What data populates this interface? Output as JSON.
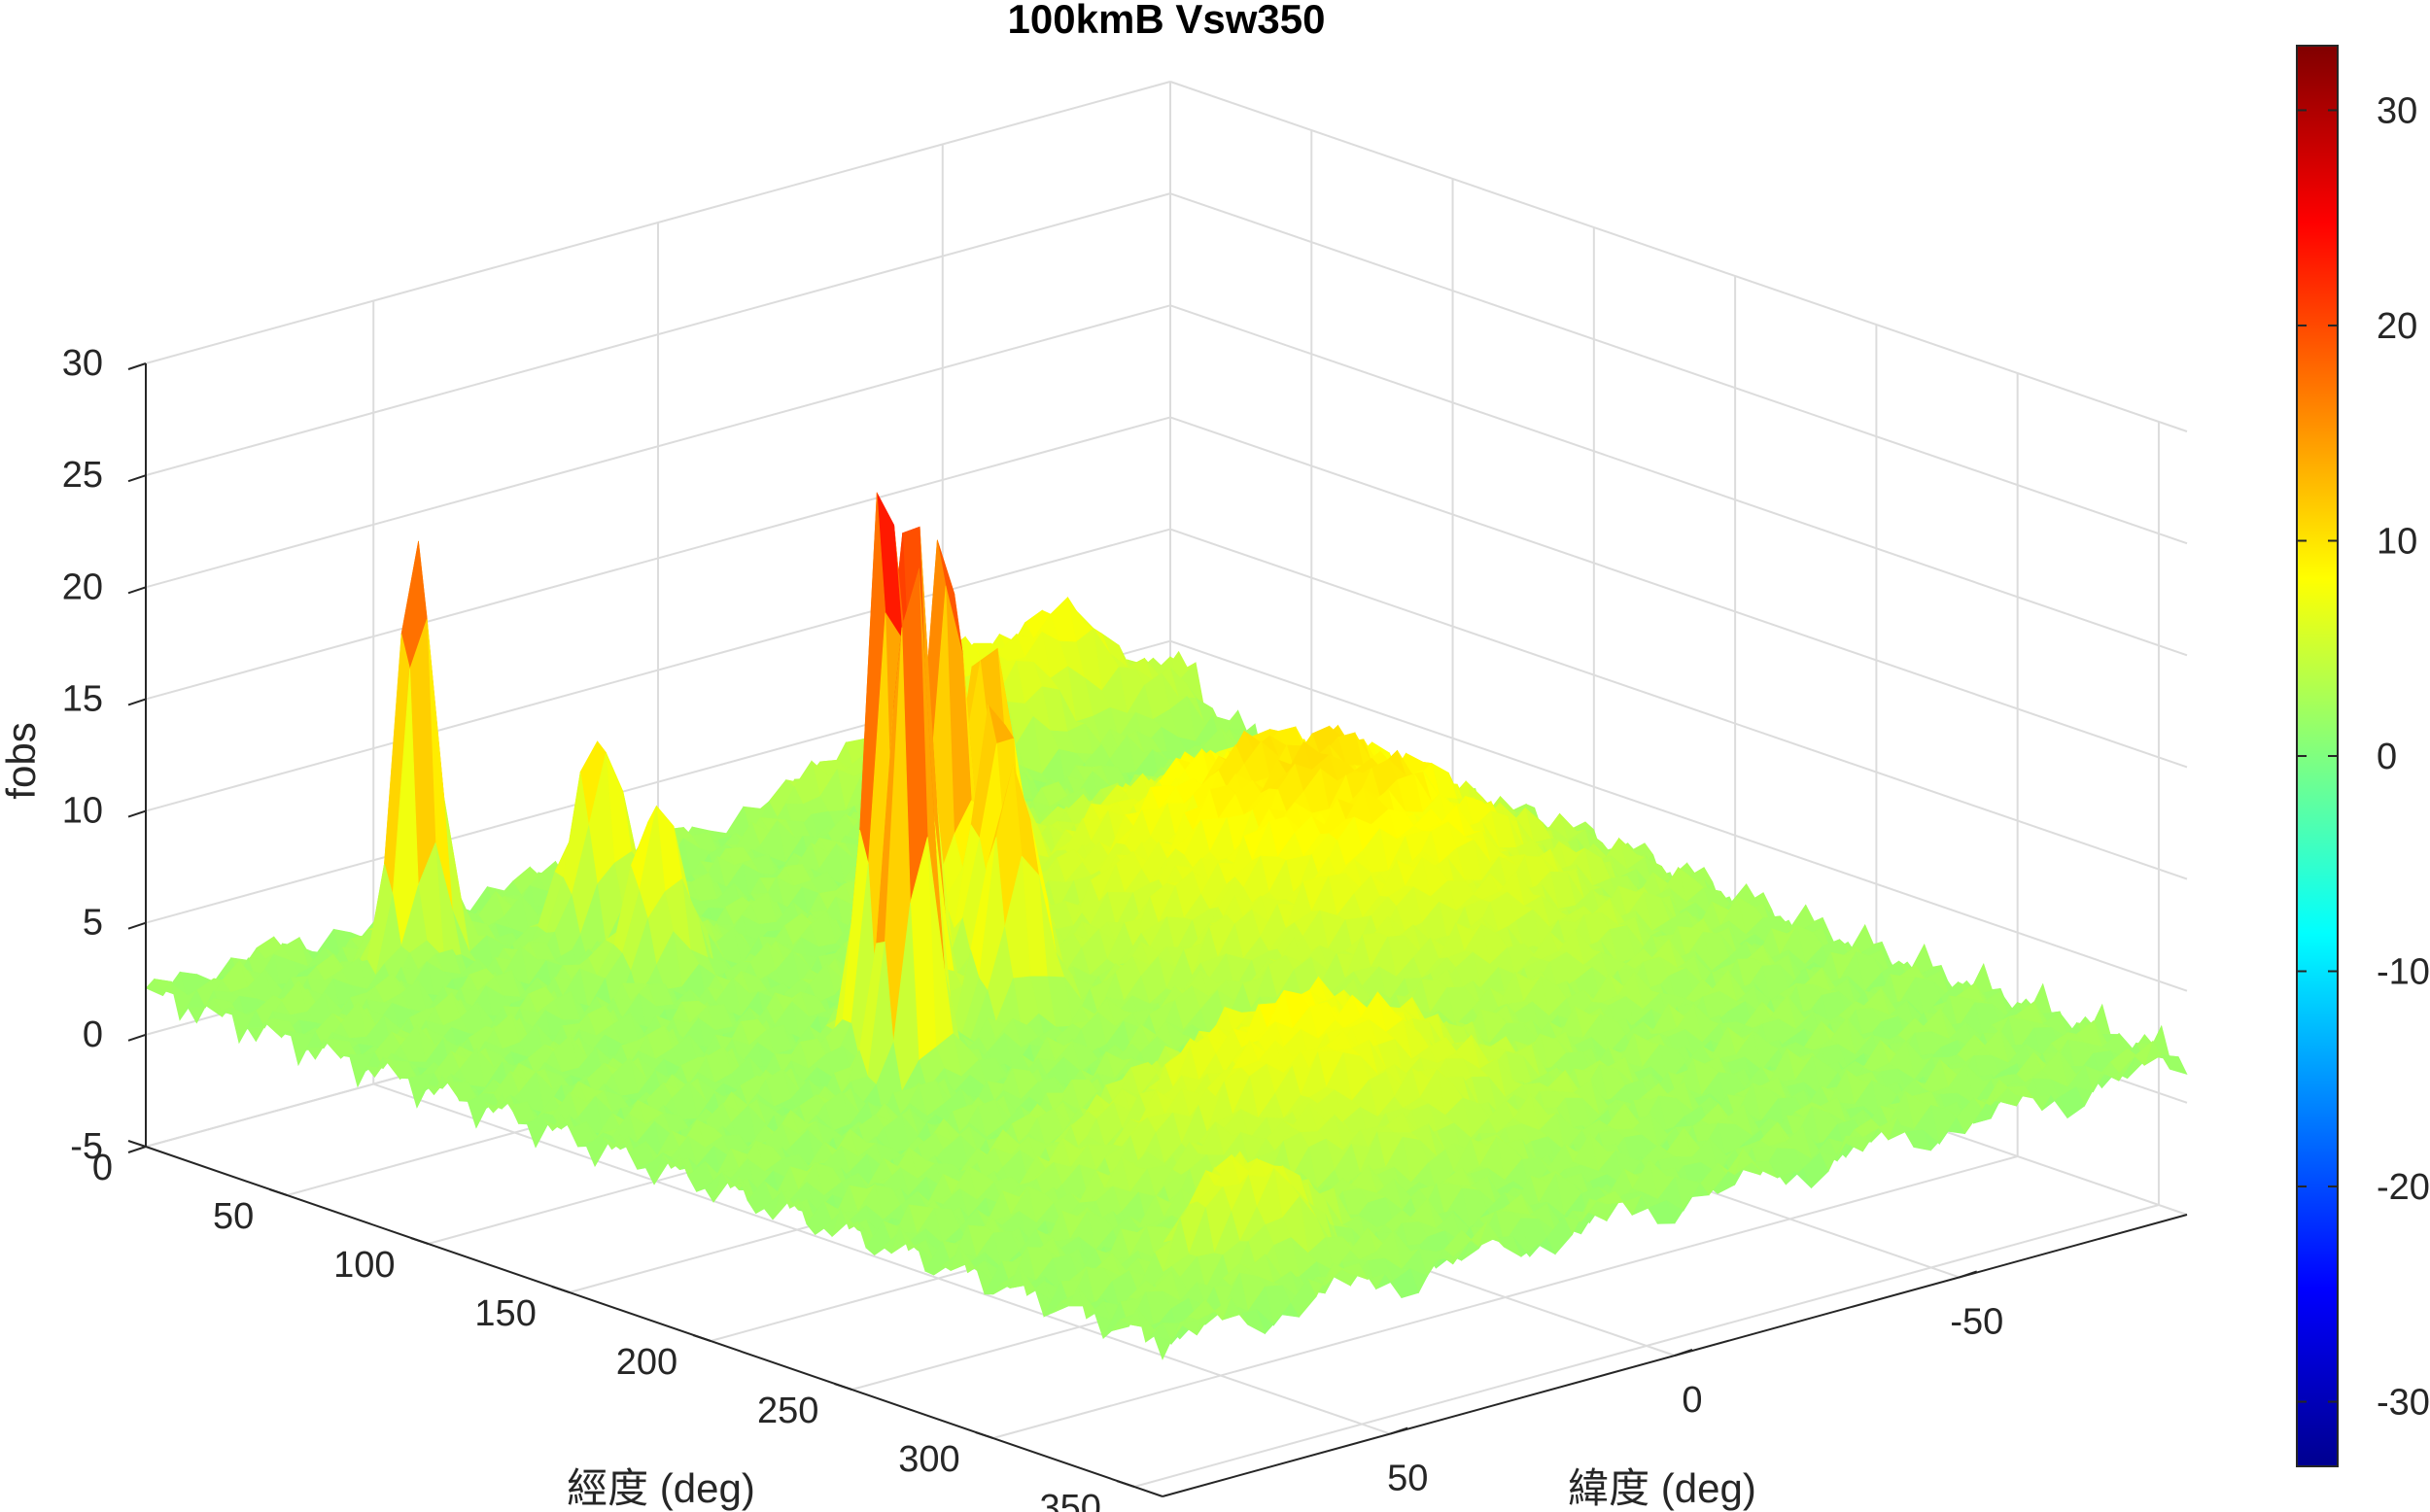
{
  "chart_data": {
    "type": "surface",
    "title": "100kmB Vsw350",
    "xlabel": "經度 (deg)",
    "ylabel": "緯度 (deg)",
    "zlabel": "fobs",
    "xlim": [
      0,
      360
    ],
    "ylim": [
      -90,
      90
    ],
    "zlim": [
      -5,
      30
    ],
    "xticks": [
      "0",
      "50",
      "100",
      "150",
      "200",
      "250",
      "300",
      "350"
    ],
    "yticks": [
      "-50",
      "0",
      "50"
    ],
    "zticks": [
      "-5",
      "0",
      "5",
      "10",
      "15",
      "20",
      "25",
      "30"
    ],
    "colorbar": {
      "colormap": "jet",
      "limits": [
        -33,
        33
      ],
      "ticks": [
        "30",
        "20",
        "10",
        "0",
        "-10",
        "-20",
        "-30"
      ]
    },
    "grid": true,
    "base_level": 2,
    "features": [
      {
        "kind": "peak",
        "lon": 25,
        "lat": 55,
        "height": 21,
        "width_lon": 3,
        "width_lat": 3
      },
      {
        "kind": "peak",
        "lon": 118,
        "lat": 8,
        "height": 21,
        "width_lon": 3,
        "width_lat": 3
      },
      {
        "kind": "peak",
        "lon": 125,
        "lat": 18,
        "height": 19,
        "width_lon": 3,
        "width_lat": 3
      },
      {
        "kind": "peak",
        "lon": 140,
        "lat": 25,
        "height": 25,
        "width_lon": 3,
        "width_lat": 3
      },
      {
        "kind": "peak",
        "lon": 145,
        "lat": 32,
        "height": 27,
        "width_lon": 3,
        "width_lat": 3
      },
      {
        "kind": "peak",
        "lon": 170,
        "lat": 40,
        "height": 26,
        "width_lon": 3,
        "width_lat": 3
      },
      {
        "kind": "peak",
        "lon": 95,
        "lat": -10,
        "height": 11,
        "width_lon": 4,
        "width_lat": 4
      },
      {
        "kind": "peak",
        "lon": 130,
        "lat": 5,
        "height": 12,
        "width_lon": 4,
        "width_lat": 4
      },
      {
        "kind": "peak",
        "lon": 155,
        "lat": 15,
        "height": 11,
        "width_lon": 4,
        "width_lat": 4
      },
      {
        "kind": "peak",
        "lon": 40,
        "lat": 30,
        "height": 9,
        "width_lon": 4,
        "width_lat": 4
      },
      {
        "kind": "peak",
        "lon": 70,
        "lat": 35,
        "height": 8,
        "width_lon": 4,
        "width_lat": 4
      },
      {
        "kind": "hump",
        "lon": 150,
        "lat": -40,
        "height": 8,
        "width_lon": 45,
        "width_lat": 22
      },
      {
        "kind": "hump",
        "lon": 270,
        "lat": 20,
        "height": 6,
        "width_lon": 25,
        "width_lat": 20
      },
      {
        "kind": "hump",
        "lon": 330,
        "lat": 60,
        "height": 5,
        "width_lon": 10,
        "width_lat": 8
      },
      {
        "kind": "ridge",
        "lon": 5,
        "lat": -60,
        "height": 6,
        "width_lon": 8,
        "width_lat": 20
      }
    ]
  }
}
